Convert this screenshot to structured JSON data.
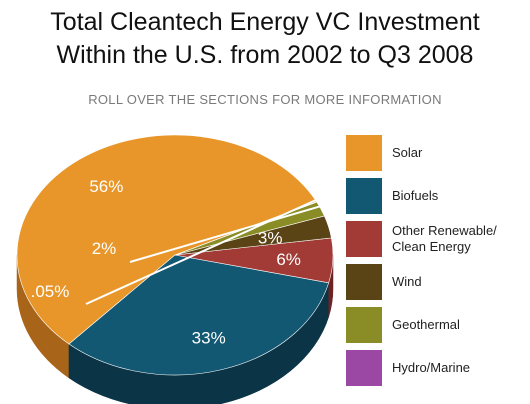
{
  "title_line1": "Total Cleantech Energy  VC Investment",
  "title_line2": "Within the U.S. from 2002 to Q3 2008",
  "subtitle": "ROLL OVER THE SECTIONS FOR MORE INFORMATION",
  "chart_data": {
    "type": "pie",
    "title": "Total Cleantech Energy  VC Investment Within the U.S. from 2002 to Q3 2008",
    "slices": [
      {
        "name": "Solar",
        "value": 56,
        "label": "56%",
        "color": "#e8962a",
        "side": "#a8651a"
      },
      {
        "name": "Biofuels",
        "value": 33,
        "label": "33%",
        "color": "#125873",
        "side": "#0b3446"
      },
      {
        "name": "Other Renewable/Clean Energy",
        "value": 6,
        "label": "6%",
        "color": "#a23b36",
        "side": "#6b2422"
      },
      {
        "name": "Wind",
        "value": 3,
        "label": "3%",
        "color": "#5a4314",
        "side": "#3a2b0c"
      },
      {
        "name": "Geothermal",
        "value": 2,
        "label": "2%",
        "color": "#8a8d26",
        "side": "#5c5e18"
      },
      {
        "name": "Hydro/Marine",
        "value": 0.05,
        "label": ".05%",
        "color": "#9a48a4",
        "side": "#653070"
      }
    ],
    "legend_position": "right"
  }
}
